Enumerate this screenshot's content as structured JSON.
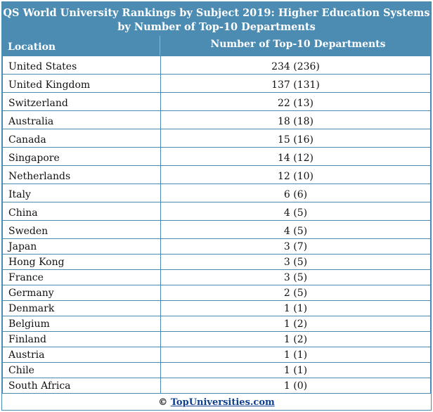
{
  "title": "QS World University Rankings by Subject 2019: Higher Education Systems by Number of Top-10 Departments",
  "columns": {
    "location": "Location",
    "count": "Number of Top-10 Departments"
  },
  "rows": [
    {
      "location": "United States",
      "count": "234 (236)"
    },
    {
      "location": "United Kingdom",
      "count": "137 (131)"
    },
    {
      "location": "Switzerland",
      "count": "22 (13)"
    },
    {
      "location": "Australia",
      "count": "18 (18)"
    },
    {
      "location": "Canada",
      "count": "15 (16)"
    },
    {
      "location": "Singapore",
      "count": "14 (12)"
    },
    {
      "location": "Netherlands",
      "count": "12 (10)"
    },
    {
      "location": "Italy",
      "count": "6 (6)"
    },
    {
      "location": "China",
      "count": "4 (5)"
    },
    {
      "location": "Sweden",
      "count": "4 (5)"
    },
    {
      "location": "Japan",
      "count": "3 (7)"
    },
    {
      "location": "Hong Kong",
      "count": "3 (5)"
    },
    {
      "location": "France",
      "count": "3 (5)"
    },
    {
      "location": "Germany",
      "count": "2 (5)"
    },
    {
      "location": "Denmark",
      "count": "1 (1)"
    },
    {
      "location": "Belgium",
      "count": "1 (2)"
    },
    {
      "location": "Finland",
      "count": "1 (2)"
    },
    {
      "location": "Austria",
      "count": "1 (1)"
    },
    {
      "location": "Chile",
      "count": "1 (1)"
    },
    {
      "location": "South Africa",
      "count": "1 (0)"
    }
  ],
  "footer": {
    "copyright": "©",
    "site": "TopUniversities.com"
  }
}
